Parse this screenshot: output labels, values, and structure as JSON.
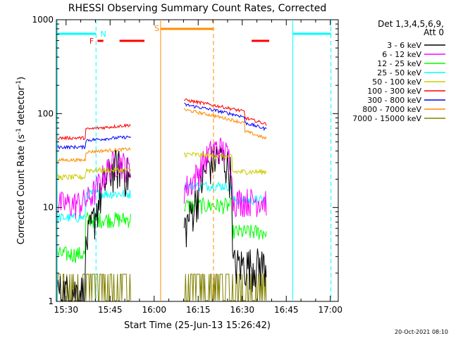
{
  "chart_data": {
    "type": "line",
    "title": "RHESSI Observing Summary Count Rates, Corrected",
    "xlabel": "Start Time (25-Jun-13 15:26:42)",
    "ylabel": "Corrected Count Rate (s",
    "ylabel_sup1": "-1",
    "ylabel_mid": " detector",
    "ylabel_sup2": "-1",
    "ylabel_end": ")",
    "timestamp": "20-Oct-2021 08:10",
    "xlim": [
      0,
      96
    ],
    "ylim": [
      1,
      1000
    ],
    "yscale": "log",
    "x_ticks": [
      {
        "label": "15:30",
        "x": 3.3
      },
      {
        "label": "15:45",
        "x": 18.3
      },
      {
        "label": "16:00",
        "x": 33.3
      },
      {
        "label": "16:15",
        "x": 48.3
      },
      {
        "label": "16:30",
        "x": 63.3
      },
      {
        "label": "16:45",
        "x": 78.3
      },
      {
        "label": "17:00",
        "x": 93.3
      }
    ],
    "y_ticks": [
      {
        "label": "1",
        "v": 1
      },
      {
        "label": "10",
        "v": 10
      },
      {
        "label": "100",
        "v": 100
      },
      {
        "label": "1000",
        "v": 1000
      }
    ],
    "legend": {
      "position": "right",
      "header1": "Det 1,3,4,5,6,9,",
      "header2": "Att 0"
    },
    "series": [
      {
        "name": "3 - 6 keV",
        "color": "#000000"
      },
      {
        "name": "6 - 12 keV",
        "color": "#ff00ff"
      },
      {
        "name": "12 - 25 keV",
        "color": "#00ff00"
      },
      {
        "name": "25 - 50 keV",
        "color": "#00ffff"
      },
      {
        "name": "50 - 100 keV",
        "color": "#cccc00"
      },
      {
        "name": "100 - 300 keV",
        "color": "#ff0000"
      },
      {
        "name": "300 - 800 keV",
        "color": "#0000ff"
      },
      {
        "name": "800 - 7000 keV",
        "color": "#ff8c00"
      },
      {
        "name": "7000 - 15000 keV",
        "color": "#808000"
      }
    ],
    "flags": [
      {
        "label": "F",
        "color": "#ff0000"
      },
      {
        "label": "N",
        "color": "#00ffff"
      },
      {
        "label": "S",
        "color": "#ff8c00"
      }
    ]
  }
}
